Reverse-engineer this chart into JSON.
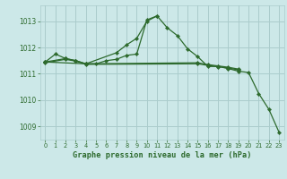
{
  "background_color": "#cce8e8",
  "grid_color": "#aacccc",
  "line_color": "#2d6a2d",
  "title": "Graphe pression niveau de la mer (hPa)",
  "xlim": [
    -0.5,
    23.5
  ],
  "ylim": [
    1008.5,
    1013.6
  ],
  "yticks": [
    1009,
    1010,
    1011,
    1012,
    1013
  ],
  "xticks": [
    0,
    1,
    2,
    3,
    4,
    5,
    6,
    7,
    8,
    9,
    10,
    11,
    12,
    13,
    14,
    15,
    16,
    17,
    18,
    19,
    20,
    21,
    22,
    23
  ],
  "series": [
    {
      "x": [
        0,
        1,
        2,
        3,
        4,
        5,
        6,
        7,
        8,
        9,
        10,
        11,
        12,
        13,
        14,
        15,
        16,
        17,
        18,
        19,
        20,
        21,
        22,
        23
      ],
      "y": [
        1011.45,
        1011.75,
        1011.58,
        1011.5,
        1011.38,
        1011.38,
        1011.5,
        1011.55,
        1011.7,
        1011.75,
        1013.05,
        1013.2,
        1012.75,
        1012.45,
        1011.95,
        1011.65,
        1011.28,
        1011.28,
        1011.2,
        1011.1,
        1011.05,
        1010.25,
        1009.65,
        1008.78
      ]
    },
    {
      "x": [
        0,
        4,
        7,
        8,
        9,
        10,
        11
      ],
      "y": [
        1011.45,
        1011.38,
        1011.8,
        1012.1,
        1012.35,
        1013.0,
        1013.2
      ]
    },
    {
      "x": [
        0,
        2,
        3,
        4,
        15,
        16,
        17,
        18,
        19
      ],
      "y": [
        1011.45,
        1011.58,
        1011.5,
        1011.38,
        1011.42,
        1011.35,
        1011.3,
        1011.25,
        1011.18
      ]
    },
    {
      "x": [
        0,
        2,
        3,
        4,
        15,
        16,
        17,
        18,
        19
      ],
      "y": [
        1011.42,
        1011.55,
        1011.48,
        1011.36,
        1011.38,
        1011.32,
        1011.27,
        1011.22,
        1011.15
      ]
    }
  ]
}
